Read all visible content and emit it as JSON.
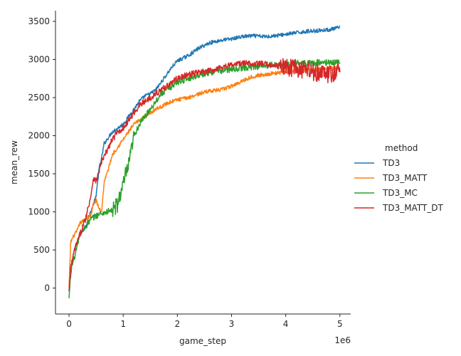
{
  "chart_data": {
    "type": "line",
    "title": "",
    "xlabel": "game_step",
    "ylabel": "mean_rew",
    "x_offset_label": "1e6",
    "xlim": [
      -0.25,
      5.2
    ],
    "ylim": [
      -340,
      3640
    ],
    "x_ticks": [
      0,
      1,
      2,
      3,
      4,
      5
    ],
    "x_tick_labels": [
      "0",
      "1",
      "2",
      "3",
      "4",
      "5"
    ],
    "y_ticks": [
      0,
      500,
      1000,
      1500,
      2000,
      2500,
      3000,
      3500
    ],
    "y_tick_labels": [
      "0",
      "500",
      "1000",
      "1500",
      "2000",
      "2500",
      "3000",
      "3500"
    ],
    "grid": false,
    "legend": {
      "title": "method",
      "placement": "right"
    },
    "series": [
      {
        "name": "TD3",
        "color": "#1f77b4",
        "x": [
          0,
          0.05,
          0.1,
          0.15,
          0.2,
          0.3,
          0.4,
          0.5,
          0.55,
          0.6,
          0.65,
          0.7,
          0.8,
          0.9,
          1.0,
          1.1,
          1.2,
          1.3,
          1.4,
          1.5,
          1.6,
          1.7,
          1.8,
          1.9,
          2.0,
          2.2,
          2.4,
          2.6,
          2.8,
          3.0,
          3.2,
          3.4,
          3.6,
          3.8,
          4.0,
          4.2,
          4.4,
          4.6,
          4.8,
          5.0
        ],
        "y": [
          -50,
          350,
          500,
          600,
          700,
          800,
          1000,
          1200,
          1550,
          1700,
          1900,
          1950,
          2050,
          2100,
          2150,
          2250,
          2350,
          2450,
          2520,
          2550,
          2600,
          2700,
          2800,
          2900,
          2980,
          3050,
          3150,
          3220,
          3250,
          3270,
          3300,
          3310,
          3300,
          3310,
          3330,
          3350,
          3370,
          3380,
          3390,
          3420
        ],
        "noise": 25
      },
      {
        "name": "TD3_MATT",
        "color": "#ff7f0e",
        "x": [
          0,
          0.03,
          0.06,
          0.1,
          0.15,
          0.2,
          0.3,
          0.4,
          0.45,
          0.5,
          0.55,
          0.6,
          0.65,
          0.7,
          0.8,
          0.9,
          1.0,
          1.1,
          1.2,
          1.3,
          1.4,
          1.5,
          1.6,
          1.7,
          1.8,
          1.9,
          2.0,
          2.2,
          2.4,
          2.6,
          2.8,
          3.0,
          3.2,
          3.4,
          3.6,
          3.8,
          4.0,
          4.2,
          4.4,
          4.6,
          4.8,
          5.0
        ],
        "y": [
          0,
          600,
          650,
          700,
          750,
          850,
          900,
          950,
          1100,
          1150,
          1050,
          1000,
          1400,
          1500,
          1750,
          1850,
          1950,
          2050,
          2150,
          2200,
          2250,
          2300,
          2350,
          2380,
          2420,
          2450,
          2470,
          2500,
          2550,
          2590,
          2600,
          2650,
          2720,
          2780,
          2800,
          2820,
          2840,
          2850,
          2860,
          2870,
          2880,
          2900
        ],
        "noise": 25
      },
      {
        "name": "TD3_MC",
        "color": "#2ca02c",
        "x": [
          0,
          0.02,
          0.05,
          0.1,
          0.15,
          0.2,
          0.3,
          0.4,
          0.5,
          0.6,
          0.7,
          0.8,
          0.85,
          0.9,
          0.95,
          1.0,
          1.05,
          1.1,
          1.15,
          1.2,
          1.3,
          1.4,
          1.5,
          1.6,
          1.7,
          1.8,
          1.9,
          2.0,
          2.2,
          2.4,
          2.6,
          2.8,
          3.0,
          3.2,
          3.4,
          3.6,
          3.8,
          4.0,
          4.2,
          4.4,
          4.6,
          4.8,
          5.0
        ],
        "y": [
          -150,
          100,
          300,
          400,
          550,
          700,
          800,
          900,
          950,
          980,
          1000,
          1020,
          1050,
          1100,
          1250,
          1350,
          1500,
          1600,
          1800,
          2000,
          2150,
          2250,
          2350,
          2450,
          2550,
          2600,
          2650,
          2700,
          2750,
          2800,
          2830,
          2850,
          2870,
          2890,
          2900,
          2920,
          2930,
          2940,
          2950,
          2950,
          2960,
          2960,
          2960
        ],
        "noise": 40
      },
      {
        "name": "TD3_MATT_DT",
        "color": "#d62728",
        "x": [
          0,
          0.03,
          0.06,
          0.1,
          0.15,
          0.2,
          0.3,
          0.4,
          0.45,
          0.5,
          0.6,
          0.7,
          0.8,
          0.9,
          1.0,
          1.1,
          1.2,
          1.3,
          1.4,
          1.5,
          1.6,
          1.7,
          1.8,
          1.9,
          2.0,
          2.2,
          2.4,
          2.6,
          2.8,
          3.0,
          3.2,
          3.4,
          3.6,
          3.8,
          4.0,
          4.2,
          4.4,
          4.6,
          4.8,
          5.0
        ],
        "y": [
          -50,
          250,
          350,
          500,
          600,
          700,
          900,
          1200,
          1450,
          1400,
          1650,
          1800,
          1950,
          2050,
          2100,
          2200,
          2300,
          2400,
          2450,
          2500,
          2550,
          2600,
          2650,
          2700,
          2750,
          2800,
          2830,
          2850,
          2900,
          2930,
          2950,
          2950,
          2940,
          2920,
          2900,
          2880,
          2850,
          2830,
          2800,
          2850
        ],
        "noise": 40
      }
    ]
  }
}
